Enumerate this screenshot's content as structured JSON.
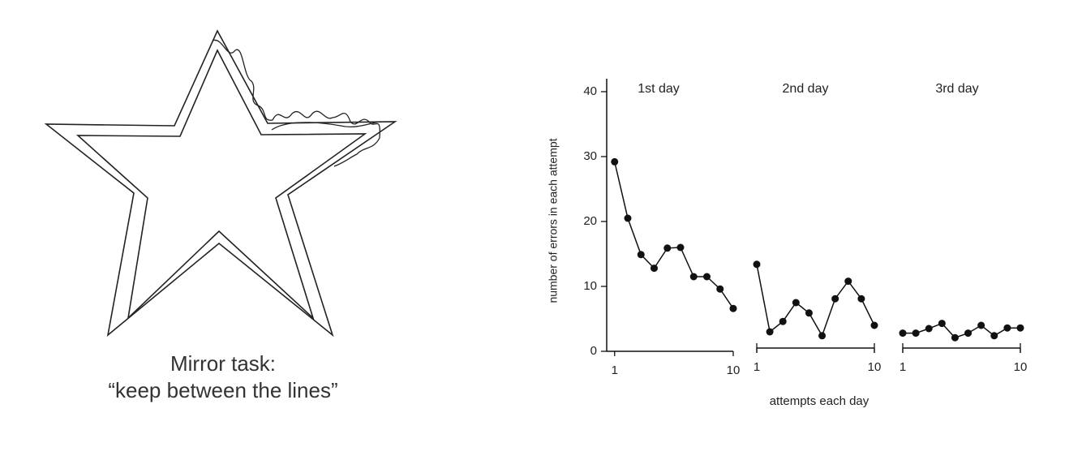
{
  "caption": [
    "Mirror task:",
    "“keep between the lines”"
  ],
  "chart_data": [
    {
      "type": "line",
      "title": "1st day",
      "ylabel": "number of errors in each attempt",
      "x": [
        1,
        2,
        3,
        4,
        5,
        6,
        7,
        8,
        9,
        10
      ],
      "xlim": [
        0.4,
        10
      ],
      "xticks": [
        1,
        10
      ],
      "values": [
        29.2,
        20.5,
        14.9,
        12.8,
        15.9,
        16,
        11.5,
        11.5,
        9.6,
        6.6
      ],
      "ylim": [
        0,
        42
      ],
      "yticks": [
        0,
        10,
        20,
        30,
        40
      ],
      "color": "#111"
    },
    {
      "type": "line",
      "title": "2nd day",
      "xlabel": "attempts each day",
      "x": [
        1,
        2,
        3,
        4,
        5,
        6,
        7,
        8,
        9,
        10
      ],
      "xlim": [
        1,
        10
      ],
      "xticks": [
        1,
        10
      ],
      "values": [
        13.4,
        3,
        4.6,
        7.5,
        5.9,
        2.4,
        8.1,
        10.8,
        8.1,
        4
      ],
      "color": "#111"
    },
    {
      "type": "line",
      "title": "3rd day",
      "x": [
        1,
        2,
        3,
        4,
        5,
        6,
        7,
        8,
        9,
        10
      ],
      "xlim": [
        1,
        10
      ],
      "xticks": [
        1,
        10
      ],
      "values": [
        2.8,
        2.8,
        3.5,
        4.3,
        2.1,
        2.8,
        4,
        2.4,
        3.6,
        3.6
      ],
      "color": "#111"
    }
  ]
}
